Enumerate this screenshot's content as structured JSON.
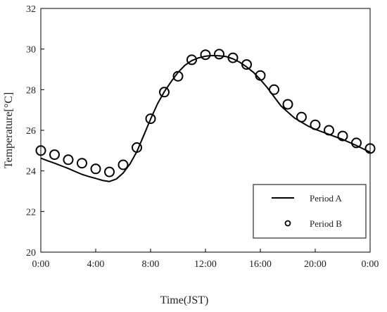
{
  "chart_data": {
    "type": "line",
    "xlabel": "Time(JST)",
    "ylabel": "Temperature[°C]",
    "xlim": [
      0,
      24
    ],
    "ylim": [
      20,
      32
    ],
    "x_ticks": [
      {
        "v": 0,
        "label": "0:00"
      },
      {
        "v": 4,
        "label": "4:00"
      },
      {
        "v": 8,
        "label": "8:00"
      },
      {
        "v": 12,
        "label": "12:00"
      },
      {
        "v": 16,
        "label": "16:00"
      },
      {
        "v": 20,
        "label": "20:00"
      },
      {
        "v": 24,
        "label": "0:00"
      }
    ],
    "y_ticks": [
      {
        "v": 20,
        "label": "20"
      },
      {
        "v": 22,
        "label": "22"
      },
      {
        "v": 24,
        "label": "24"
      },
      {
        "v": 26,
        "label": "26"
      },
      {
        "v": 28,
        "label": "28"
      },
      {
        "v": 30,
        "label": "30"
      },
      {
        "v": 32,
        "label": "32"
      }
    ],
    "grid": false,
    "legend_position": "bottom-right",
    "series": [
      {
        "name": "Period A",
        "style": "line",
        "color": "#000000",
        "x": [
          0,
          0.5,
          1,
          1.5,
          2,
          2.5,
          3,
          3.5,
          4,
          4.5,
          5,
          5.5,
          6,
          6.5,
          7,
          7.5,
          8,
          8.5,
          9,
          9.5,
          10,
          10.5,
          11,
          11.5,
          12,
          12.5,
          13,
          13.5,
          14,
          14.5,
          15,
          15.5,
          16,
          16.5,
          17,
          17.5,
          18,
          18.5,
          19,
          19.5,
          20,
          21,
          22,
          23,
          24
        ],
        "y": [
          24.63,
          24.5,
          24.38,
          24.25,
          24.12,
          23.97,
          23.83,
          23.72,
          23.63,
          23.53,
          23.48,
          23.6,
          23.9,
          24.35,
          24.95,
          25.75,
          26.55,
          27.3,
          27.9,
          28.4,
          28.85,
          29.2,
          29.43,
          29.57,
          29.65,
          29.68,
          29.67,
          29.63,
          29.52,
          29.35,
          29.12,
          28.85,
          28.5,
          28.1,
          27.65,
          27.2,
          26.9,
          26.6,
          26.4,
          26.2,
          26.05,
          25.8,
          25.55,
          25.25,
          24.92
        ]
      },
      {
        "name": "Period B",
        "style": "marker",
        "marker": "open-circle",
        "color": "#000000",
        "x": [
          0,
          1,
          2,
          3,
          4,
          5,
          6,
          7,
          8,
          9,
          10,
          11,
          12,
          13,
          14,
          15,
          16,
          17,
          18,
          19,
          20,
          21,
          22,
          23,
          24
        ],
        "y": [
          25.0,
          24.8,
          24.55,
          24.38,
          24.1,
          23.95,
          24.3,
          25.15,
          26.57,
          27.88,
          28.66,
          29.47,
          29.72,
          29.75,
          29.57,
          29.24,
          28.7,
          28.0,
          27.28,
          26.65,
          26.27,
          26.0,
          25.72,
          25.38,
          25.1
        ]
      }
    ]
  }
}
